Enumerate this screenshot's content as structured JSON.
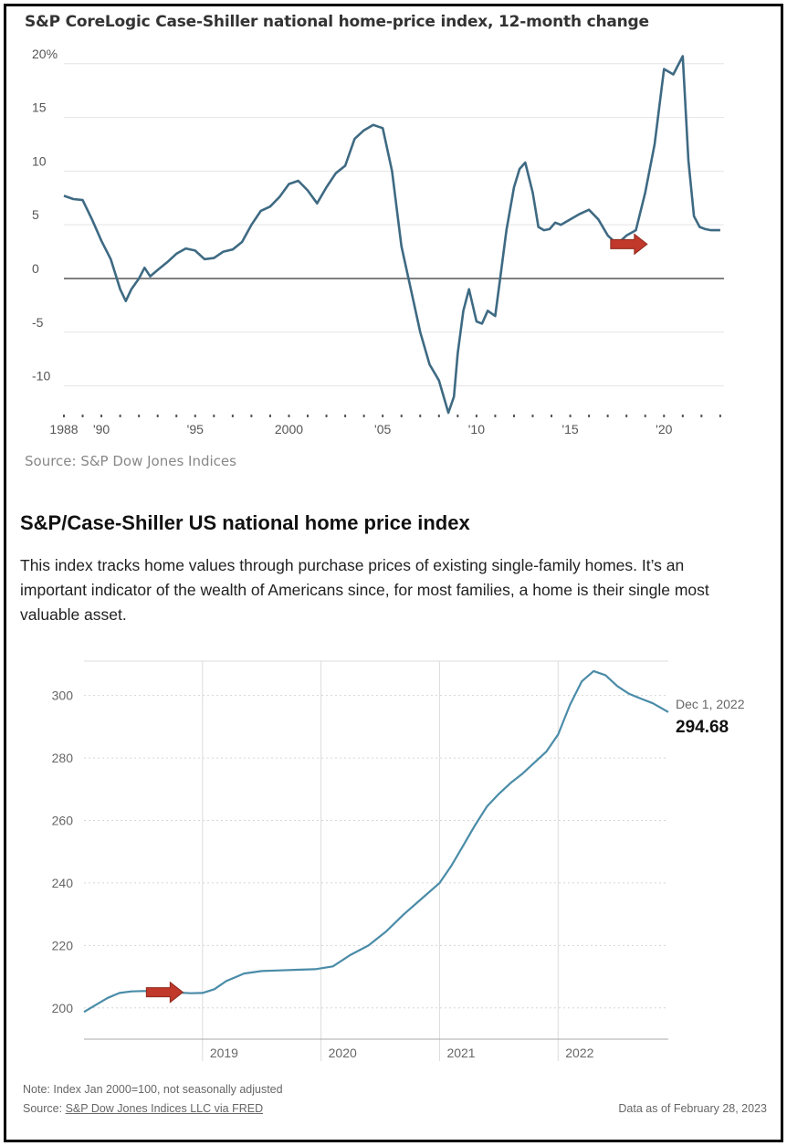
{
  "chart_data": [
    {
      "type": "line",
      "title": "S&P CoreLogic Case-Shiller national home-price index, 12-month change",
      "source": "Source: S&P Dow Jones Indices",
      "y_ticks": [
        "20%",
        "15",
        "10",
        "5",
        "0",
        "-5",
        "-10"
      ],
      "y_tick_values": [
        20,
        15,
        10,
        5,
        0,
        -5,
        -10
      ],
      "ylim": [
        -12.5,
        21
      ],
      "xlim": [
        1988,
        2023.2
      ],
      "x_ticks": [
        "1988",
        "'90",
        "'95",
        "2000",
        "'05",
        "'10",
        "'15",
        "'20"
      ],
      "x_tick_values": [
        1988,
        1990,
        1995,
        2000,
        2005,
        2010,
        2015,
        2020
      ],
      "grid": true,
      "line_color": "#3e6a83",
      "arrow_color": "#c0392b",
      "arrow_at": {
        "x": 2019.2,
        "y": 3.2
      },
      "series": [
        {
          "x": [
            1988.0,
            1988.5,
            1989.0,
            1989.5,
            1990.0,
            1990.5,
            1991.0,
            1991.3,
            1991.6,
            1992.0,
            1992.3,
            1992.6,
            1993.0,
            1993.5,
            1994.0,
            1994.5,
            1995.0,
            1995.5,
            1996.0,
            1996.5,
            1997.0,
            1997.5,
            1998.0,
            1998.5,
            1999.0,
            1999.5,
            2000.0,
            2000.5,
            2001.0,
            2001.5,
            2002.0,
            2002.5,
            2003.0,
            2003.5,
            2004.0,
            2004.5,
            2005.0,
            2005.5,
            2006.0,
            2006.5,
            2007.0,
            2007.5,
            2008.0,
            2008.5,
            2008.8,
            2009.0,
            2009.3,
            2009.6,
            2010.0,
            2010.3,
            2010.6,
            2011.0,
            2011.3,
            2011.6,
            2012.0,
            2012.3,
            2012.6,
            2013.0,
            2013.3,
            2013.6,
            2013.9,
            2014.2,
            2014.5,
            2015.0,
            2015.5,
            2016.0,
            2016.5,
            2017.0,
            2017.5,
            2018.0,
            2018.5,
            2019.0,
            2019.5,
            2020.0,
            2020.5,
            2021.0,
            2021.3,
            2021.6,
            2021.9,
            2022.2,
            2022.5,
            2022.8,
            2023.0
          ],
          "y": [
            7.7,
            7.4,
            7.3,
            5.5,
            3.5,
            1.8,
            -1.0,
            -2.1,
            -1.0,
            0.0,
            1.0,
            0.2,
            0.8,
            1.5,
            2.3,
            2.8,
            2.6,
            1.8,
            1.9,
            2.5,
            2.7,
            3.4,
            5.0,
            6.3,
            6.7,
            7.6,
            8.8,
            9.1,
            8.2,
            7.0,
            8.5,
            9.8,
            10.5,
            13.0,
            13.8,
            14.3,
            14.0,
            10.0,
            3.0,
            -1.0,
            -5.0,
            -8.0,
            -9.5,
            -12.5,
            -11.0,
            -7.0,
            -3.0,
            -1.0,
            -4.0,
            -4.2,
            -3.0,
            -3.5,
            0.5,
            4.5,
            8.5,
            10.2,
            10.8,
            8.0,
            4.8,
            4.5,
            4.6,
            5.2,
            5.0,
            5.5,
            6.0,
            6.4,
            5.5,
            4.0,
            3.2,
            4.0,
            4.5,
            8.0,
            12.5,
            19.5,
            19.0,
            20.7,
            11.0,
            5.8,
            4.8,
            4.6,
            4.5,
            4.5,
            4.5
          ]
        }
      ]
    },
    {
      "type": "line",
      "title": "S&P/Case-Shiller US national home price index",
      "description": "This index tracks home values through purchase prices of existing single-family homes. It’s an important indicator of the wealth of Americans since, for most families, a home is their single most valuable asset.",
      "y_ticks": [
        "300",
        "280",
        "260",
        "240",
        "220",
        "200"
      ],
      "y_tick_values": [
        300,
        280,
        260,
        240,
        220,
        200
      ],
      "ylim": [
        190,
        311
      ],
      "xlim": [
        2018.0,
        2022.93
      ],
      "x_ticks": [
        "2019",
        "2020",
        "2021",
        "2022"
      ],
      "x_tick_values": [
        2019,
        2020,
        2021,
        2022
      ],
      "grid": true,
      "line_color": "#4a8ca8",
      "arrow_color": "#c0392b",
      "arrow_at": {
        "x": 2018.85,
        "y": 205
      },
      "end_label": {
        "date": "Dec 1, 2022",
        "value": "294.68"
      },
      "series": [
        {
          "x": [
            2018.0,
            2018.1,
            2018.2,
            2018.3,
            2018.4,
            2018.5,
            2018.6,
            2018.7,
            2018.8,
            2018.9,
            2019.0,
            2019.1,
            2019.2,
            2019.35,
            2019.5,
            2019.65,
            2019.8,
            2019.95,
            2020.1,
            2020.25,
            2020.4,
            2020.55,
            2020.7,
            2020.85,
            2021.0,
            2021.1,
            2021.2,
            2021.3,
            2021.4,
            2021.5,
            2021.6,
            2021.7,
            2021.8,
            2021.9,
            2022.0,
            2022.1,
            2022.2,
            2022.3,
            2022.4,
            2022.5,
            2022.6,
            2022.7,
            2022.8,
            2022.93
          ],
          "y": [
            198.7,
            201.0,
            203.2,
            204.8,
            205.3,
            205.4,
            205.4,
            205.2,
            204.9,
            204.7,
            204.8,
            206.0,
            208.6,
            211.0,
            211.8,
            212.0,
            212.2,
            212.4,
            213.3,
            217.0,
            220.0,
            224.5,
            230.0,
            235.0,
            240.0,
            245.5,
            252.0,
            258.5,
            264.5,
            268.5,
            272.0,
            275.0,
            278.5,
            282.0,
            287.5,
            297.0,
            304.5,
            307.8,
            306.5,
            303.0,
            300.5,
            299.0,
            297.5,
            294.68
          ]
        }
      ]
    }
  ],
  "footer": {
    "note": "Note: Index Jan 2000=100, not seasonally adjusted",
    "source_prefix": "Source: ",
    "source_link": "S&P Dow Jones Indices LLC via FRED",
    "as_of": "Data as of February 28, 2023"
  }
}
